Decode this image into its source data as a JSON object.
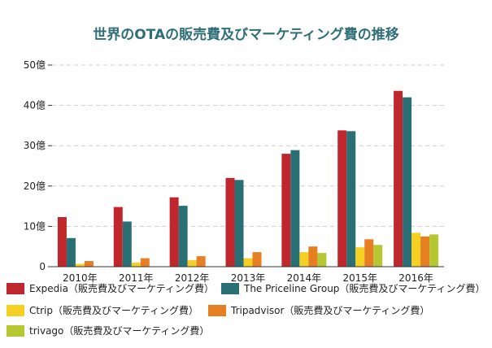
{
  "chart_data": {
    "type": "bar",
    "title": "世界のOTAの販売費及びマーケティング費の推移",
    "categories": [
      "2010年",
      "2011年",
      "2012年",
      "2013年",
      "2014年",
      "2015年",
      "2016年"
    ],
    "y_ticks": [
      "0",
      "10億",
      "20億",
      "30億",
      "40億",
      "50億"
    ],
    "ylim": [
      0,
      50
    ],
    "y_unit": "億",
    "grid": true,
    "legend_position": "bottom",
    "series": [
      {
        "name": "Expedia（販売費及びマーケティング費）",
        "color": "#c0262d",
        "values": [
          12.3,
          14.8,
          17.2,
          22.0,
          28.0,
          33.8,
          43.6
        ]
      },
      {
        "name": "The Priceline Group（販売費及びマーケティング費）",
        "color": "#2a6f74",
        "values": [
          7.1,
          11.2,
          15.1,
          21.5,
          28.9,
          33.6,
          42.0
        ]
      },
      {
        "name": "Ctrip（販売費及びマーケティング費）",
        "color": "#f5cf22",
        "values": [
          0.7,
          1.0,
          1.6,
          2.1,
          3.6,
          4.8,
          8.4
        ]
      },
      {
        "name": "Tripadvisor（販売費及びマーケティング費）",
        "color": "#e67e22",
        "values": [
          1.4,
          2.1,
          2.6,
          3.6,
          5.0,
          6.8,
          7.5
        ]
      },
      {
        "name": "trivago（販売費及びマーケティング費）",
        "color": "#b6c734",
        "values": [
          null,
          null,
          null,
          null,
          3.4,
          5.4,
          8.0
        ]
      }
    ]
  }
}
